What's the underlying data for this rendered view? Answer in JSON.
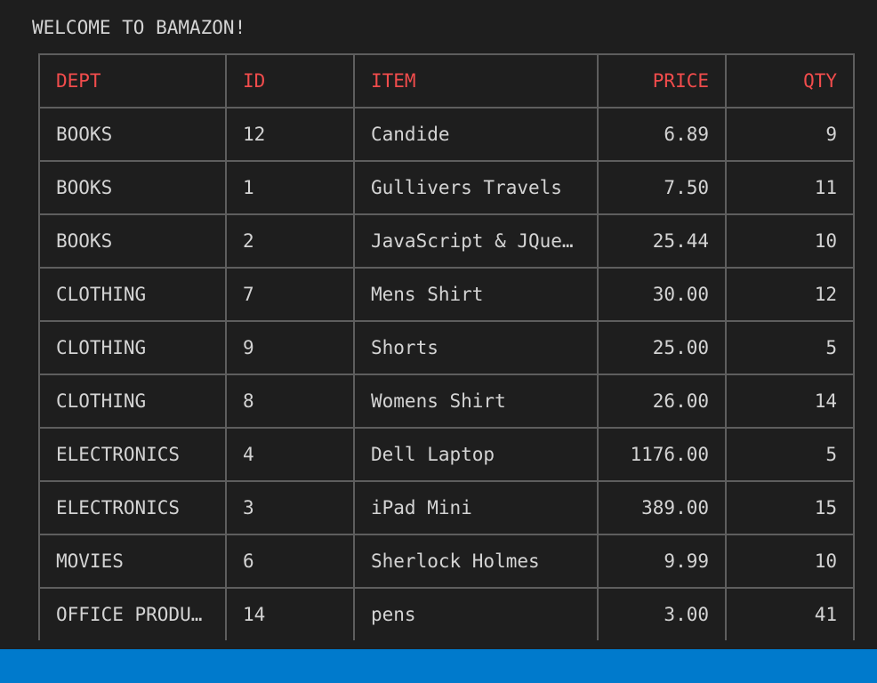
{
  "terminal": {
    "welcome": "WELCOME TO BAMAZON!"
  },
  "table": {
    "headers": {
      "dept": "DEPT",
      "id": "ID",
      "item": "ITEM",
      "price": "PRICE",
      "qty": "QTY"
    },
    "rows": [
      {
        "dept": "BOOKS",
        "id": "12",
        "item": "Candide",
        "price": "6.89",
        "qty": "9"
      },
      {
        "dept": "BOOKS",
        "id": "1",
        "item": "Gullivers Travels",
        "price": "7.50",
        "qty": "11"
      },
      {
        "dept": "BOOKS",
        "id": "2",
        "item": "JavaScript & JQue…",
        "price": "25.44",
        "qty": "10"
      },
      {
        "dept": "CLOTHING",
        "id": "7",
        "item": "Mens Shirt",
        "price": "30.00",
        "qty": "12"
      },
      {
        "dept": "CLOTHING",
        "id": "9",
        "item": "Shorts",
        "price": "25.00",
        "qty": "5"
      },
      {
        "dept": "CLOTHING",
        "id": "8",
        "item": "Womens Shirt",
        "price": "26.00",
        "qty": "14"
      },
      {
        "dept": "ELECTRONICS",
        "id": "4",
        "item": "Dell Laptop",
        "price": "1176.00",
        "qty": "5"
      },
      {
        "dept": "ELECTRONICS",
        "id": "3",
        "item": "iPad Mini",
        "price": "389.00",
        "qty": "15"
      },
      {
        "dept": "MOVIES",
        "id": "6",
        "item": "Sherlock Holmes",
        "price": "9.99",
        "qty": "10"
      },
      {
        "dept": "OFFICE PRODU…",
        "id": "14",
        "item": "pens",
        "price": "3.00",
        "qty": "41"
      }
    ]
  },
  "colors": {
    "background": "#1e1e1e",
    "text": "#d4d4d4",
    "header_text": "#f14c4c",
    "border": "#5e5e5e",
    "status_bar": "#007acc"
  }
}
